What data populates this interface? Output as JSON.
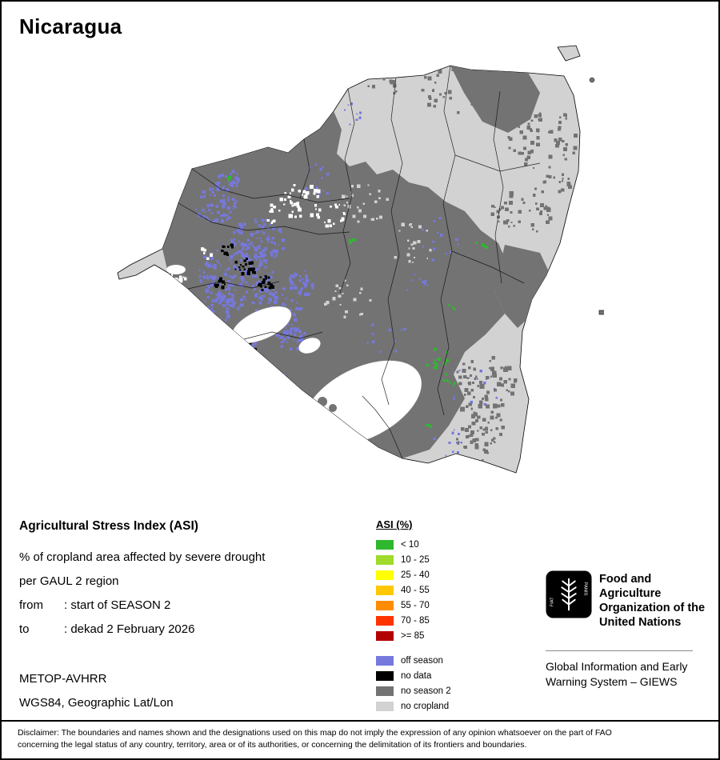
{
  "page": {
    "title": "Nicaragua"
  },
  "info": {
    "heading": "Agricultural Stress Index (ASI)",
    "subtitle1": "% of cropland area affected by severe drought",
    "subtitle2": "per GAUL 2 region",
    "from_label": "from",
    "from_value": ": start of SEASON 2",
    "to_label": "to",
    "to_value": ": dekad 2 February 2026",
    "sensor": "METOP-AVHRR",
    "projection": "WGS84, Geographic Lat/Lon"
  },
  "legend": {
    "title": "ASI (%)",
    "classes": [
      {
        "label": "< 10",
        "color": "#2eb82e"
      },
      {
        "label": "10 - 25",
        "color": "#9fdb2a"
      },
      {
        "label": "25 - 40",
        "color": "#ffff00"
      },
      {
        "label": "40 - 55",
        "color": "#ffc800"
      },
      {
        "label": "55 - 70",
        "color": "#ff8c00"
      },
      {
        "label": "70 - 85",
        "color": "#ff3300"
      },
      {
        "label": ">= 85",
        "color": "#b30000"
      }
    ],
    "extra_classes": [
      {
        "label": "off season",
        "color": "#7678dd"
      },
      {
        "label": "no data",
        "color": "#000000"
      },
      {
        "label": "no season 2",
        "color": "#737373"
      },
      {
        "label": "no cropland",
        "color": "#d2d2d2"
      }
    ]
  },
  "map": {
    "colors": {
      "no_season2": "#737373",
      "no_cropland": "#d2d2d2",
      "off_season": "#7678dd",
      "no_data": "#000000",
      "water": "#ffffff",
      "asi_low": "#2eb82e"
    }
  },
  "branding": {
    "fao_motto_left": "FIAT",
    "fao_motto_right": "PANIS",
    "org_line1": "Food and Agriculture",
    "org_line2": "Organization of the",
    "org_line3": "United Nations",
    "giews_line1": "Global Information and Early",
    "giews_line2": "Warning System – GIEWS"
  },
  "footer": {
    "disclaimer_line1": "Disclaimer: The boundaries and names shown and the designations used on this map do not imply the expression of any opinion whatsoever on the part of FAO",
    "disclaimer_line2": "concerning the legal status of any country, territory, area or of its authorities, or concerning the delimitation of its frontiers and boundaries."
  }
}
